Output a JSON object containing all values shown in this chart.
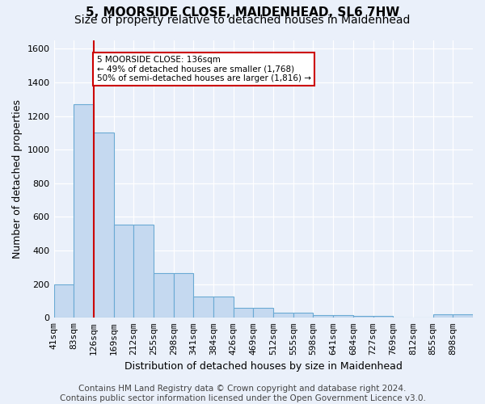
{
  "title1": "5, MOORSIDE CLOSE, MAIDENHEAD, SL6 7HW",
  "title2": "Size of property relative to detached houses in Maidenhead",
  "xlabel": "Distribution of detached houses by size in Maidenhead",
  "ylabel": "Number of detached properties",
  "footer1": "Contains HM Land Registry data © Crown copyright and database right 2024.",
  "footer2": "Contains public sector information licensed under the Open Government Licence v3.0.",
  "bin_labels": [
    "41sqm",
    "83sqm",
    "126sqm",
    "169sqm",
    "212sqm",
    "255sqm",
    "298sqm",
    "341sqm",
    "384sqm",
    "426sqm",
    "469sqm",
    "512sqm",
    "555sqm",
    "598sqm",
    "641sqm",
    "684sqm",
    "727sqm",
    "769sqm",
    "812sqm",
    "855sqm",
    "898sqm"
  ],
  "bar_values": [
    200,
    1270,
    1100,
    555,
    555,
    265,
    265,
    125,
    125,
    60,
    60,
    30,
    30,
    18,
    18,
    12,
    12,
    0,
    0,
    22,
    22
  ],
  "bar_color": "#c5d9f0",
  "bar_edge_color": "#6aaad4",
  "red_line_color": "#cc0000",
  "red_line_bin": 2,
  "annotation_text": "5 MOORSIDE CLOSE: 136sqm\n← 49% of detached houses are smaller (1,768)\n50% of semi-detached houses are larger (1,816) →",
  "annotation_box_color": "#ffffff",
  "annotation_box_edge_color": "#cc0000",
  "ylim": [
    0,
    1650
  ],
  "yticks": [
    0,
    200,
    400,
    600,
    800,
    1000,
    1200,
    1400,
    1600
  ],
  "bg_color": "#eaf0fa",
  "grid_color": "#ffffff",
  "title_fontsize": 11,
  "subtitle_fontsize": 10,
  "axis_label_fontsize": 9,
  "tick_fontsize": 8,
  "footer_fontsize": 7.5
}
